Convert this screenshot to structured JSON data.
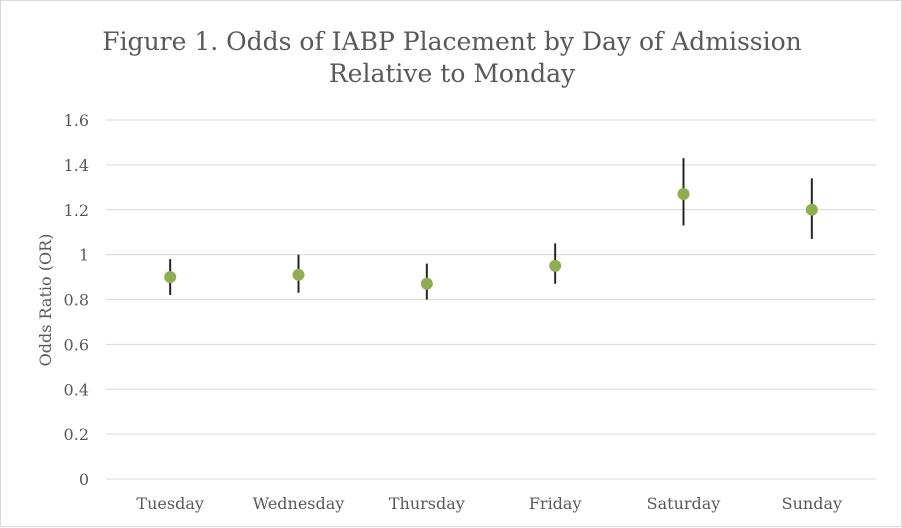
{
  "chart_data": {
    "type": "scatter",
    "title_line1": "Figure 1. Odds of IABP Placement by Day of Admission",
    "title_line2": "Relative to Monday",
    "xlabel": "",
    "ylabel": "Odds Ratio (OR)",
    "ylim": [
      0,
      1.6
    ],
    "yticks": [
      "0",
      "0.2",
      "0.4",
      "0.6",
      "0.8",
      "1",
      "1.2",
      "1.4",
      "1.6"
    ],
    "grid": true,
    "legend": "none",
    "categories": [
      "Tuesday",
      "Wednesday",
      "Thursday",
      "Friday",
      "Saturday",
      "Sunday"
    ],
    "series": [
      {
        "values": [
          0.9,
          0.91,
          0.87,
          0.95,
          1.27,
          1.2
        ],
        "ci_lower": [
          0.82,
          0.83,
          0.8,
          0.87,
          1.13,
          1.07
        ],
        "ci_upper": [
          0.98,
          1.0,
          0.96,
          1.05,
          1.43,
          1.34
        ]
      }
    ],
    "colors": {
      "marker": "#8faf4f",
      "error_bar": "#262626",
      "grid": "#d9d9d9",
      "text": "#595959"
    }
  }
}
